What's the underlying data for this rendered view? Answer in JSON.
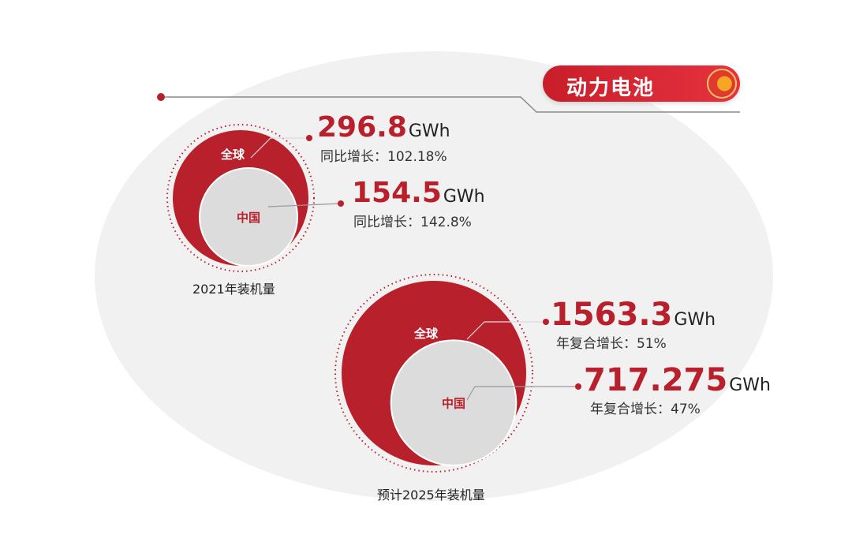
{
  "header": {
    "title": "动力电池"
  },
  "chart_data": [
    {
      "type": "bubble",
      "caption": "2021年装机量",
      "unit": "GWh",
      "bubbles": [
        {
          "label": "全球",
          "value": 296.8,
          "value_text": "296.8",
          "growth_text": "同比增长：102.18%"
        },
        {
          "label": "中国",
          "value": 154.5,
          "value_text": "154.5",
          "growth_text": "同比增长：142.8%"
        }
      ]
    },
    {
      "type": "bubble",
      "caption": "预计2025年装机量",
      "unit": "GWh",
      "bubbles": [
        {
          "label": "全球",
          "value": 1563.3,
          "value_text": "1563.3",
          "growth_text": "年复合增长：51%"
        },
        {
          "label": "中国",
          "value": 717.275,
          "value_text": "717.275",
          "growth_text": "年复合增长：47%"
        }
      ]
    }
  ],
  "colors": {
    "accent": "#b8202c",
    "inner": "#dcdcdc",
    "line": "#999999"
  }
}
